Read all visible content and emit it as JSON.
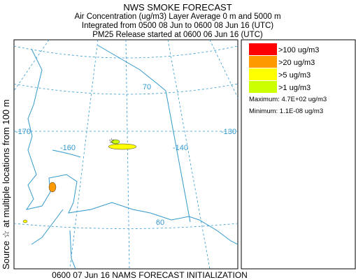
{
  "header": {
    "title": "NWS SMOKE FORECAST",
    "lines": [
      "Air Concentration (ug/m3) Layer Average    0 m and  5000 m",
      "Integrated from 0500 08 Jun to 0600 08 Jun 16 (UTC)",
      "PM25 Release started at 0600 06 Jun 16 (UTC)"
    ]
  },
  "side_label": "Source ☆ at multiple locations    from   100 m",
  "map": {
    "grid_labels": [
      "-170",
      "-160",
      "-140",
      "-130",
      "70",
      "60"
    ]
  },
  "legend": {
    "entries": [
      {
        "label": ">100 ug/m3",
        "color": "#ff0000"
      },
      {
        "label": ">20 ug/m3",
        "color": "#ff9900"
      },
      {
        "label": ">5 ug/m3",
        "color": "#ffff00"
      },
      {
        "label": ">1 ug/m3",
        "color": "#ccff00"
      }
    ],
    "maximum": "Maximum: 4.7E+02 ug/m3",
    "minimum": "Minimum: 1.1E-08 ug/m3"
  },
  "footer": "0600 07 Jun 16 NAMS FORECAST INITIALIZATION"
}
